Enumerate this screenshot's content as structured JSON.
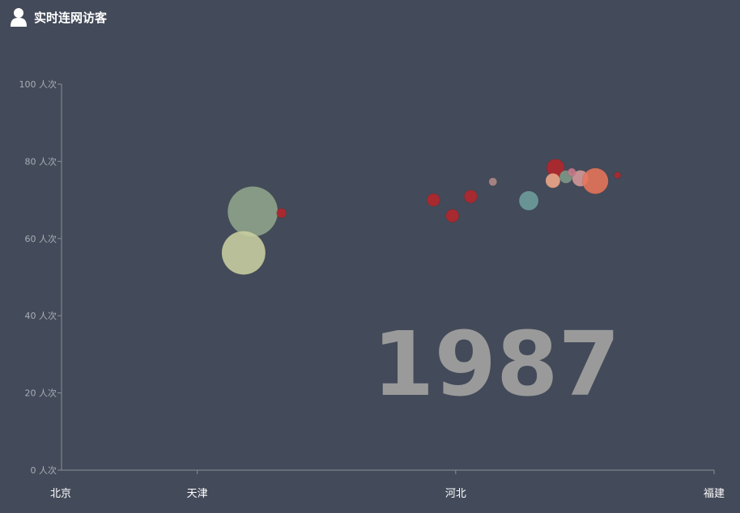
{
  "header": {
    "title": "实时连网访客",
    "icon": "user-icon"
  },
  "chart_data": {
    "type": "scatter",
    "title": "实时连网访客",
    "year": "1987",
    "y_unit": "人次",
    "ylim": [
      0,
      100
    ],
    "y_ticks": [
      "0 人次",
      "20 人次",
      "40 人次",
      "60 人次",
      "80 人次",
      "100 人次"
    ],
    "x_ticks": [
      "北京",
      "天津",
      "河北",
      "福建"
    ],
    "grid": false,
    "points": [
      {
        "x": 0.293,
        "y": 67.0,
        "size": 31,
        "color": "#8fa58c"
      },
      {
        "x": 0.279,
        "y": 56.3,
        "size": 27,
        "color": "#c9cfa0"
      },
      {
        "x": 0.337,
        "y": 66.6,
        "size": 6,
        "color": "#b5262a"
      },
      {
        "x": 0.57,
        "y": 70.0,
        "size": 8,
        "color": "#b5262a"
      },
      {
        "x": 0.599,
        "y": 65.9,
        "size": 8,
        "color": "#b5262a"
      },
      {
        "x": 0.627,
        "y": 70.9,
        "size": 8,
        "color": "#b5262a"
      },
      {
        "x": 0.661,
        "y": 74.7,
        "size": 5,
        "color": "#b08a86"
      },
      {
        "x": 0.716,
        "y": 69.8,
        "size": 12,
        "color": "#6e9e9e"
      },
      {
        "x": 0.757,
        "y": 78.3,
        "size": 11,
        "color": "#b5262a"
      },
      {
        "x": 0.753,
        "y": 75.0,
        "size": 9,
        "color": "#f0a88a"
      },
      {
        "x": 0.773,
        "y": 76.0,
        "size": 8,
        "color": "#7e9a88"
      },
      {
        "x": 0.795,
        "y": 75.6,
        "size": 10,
        "color": "#d69a9a"
      },
      {
        "x": 0.818,
        "y": 74.9,
        "size": 16,
        "color": "#e8745a"
      },
      {
        "x": 0.782,
        "y": 77.2,
        "size": 5,
        "color": "#c97a8a"
      },
      {
        "x": 0.852,
        "y": 76.4,
        "size": 4,
        "color": "#b5262a"
      }
    ],
    "colors": {
      "axis": "#8a8f98",
      "ytick_text": "#a9adb6",
      "xtick_text": "#ffffff",
      "year_text": "#9a9a9a",
      "background": "#434a59"
    }
  }
}
